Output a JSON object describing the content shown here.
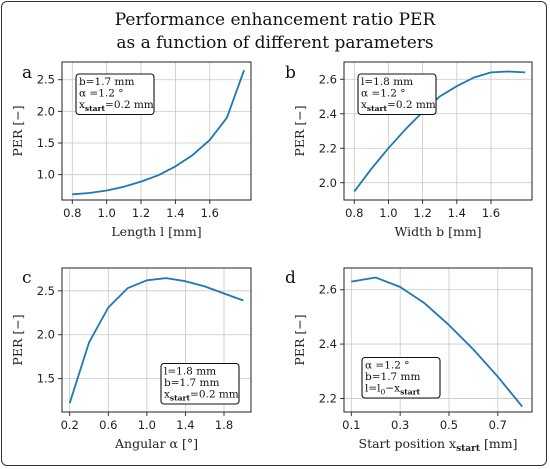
{
  "figure": {
    "title_line1": "Performance enhancement ratio PER",
    "title_line2": "as a function of different parameters",
    "line_color": "#1f77b4",
    "grid_color": "#c8c8c8"
  },
  "chart_data": [
    {
      "panel": "a",
      "type": "line",
      "xlabel": "Length l [mm]",
      "ylabel": "PER  [−]",
      "xlim": [
        0.74,
        1.84
      ],
      "ylim": [
        0.6,
        2.78
      ],
      "xticks": [
        "0.8",
        "1.0",
        "1.2",
        "1.4",
        "1.6"
      ],
      "yticks": [
        "1.0",
        "1.5",
        "2.0",
        "2.5"
      ],
      "grid": true,
      "annotation": [
        "b=1.7 mm",
        "α =1.2 °",
        "x_start=0.2 mm"
      ],
      "annotation_position": "top-left",
      "series": [
        {
          "x": [
            0.8,
            0.9,
            1.0,
            1.1,
            1.2,
            1.3,
            1.4,
            1.5,
            1.6,
            1.7,
            1.8
          ],
          "y": [
            0.69,
            0.71,
            0.75,
            0.81,
            0.89,
            0.99,
            1.13,
            1.31,
            1.55,
            1.9,
            2.65
          ]
        }
      ]
    },
    {
      "panel": "b",
      "type": "line",
      "xlabel": "Width b [mm]",
      "ylabel": "PER  [−]",
      "xlim": [
        0.74,
        1.84
      ],
      "ylim": [
        1.9,
        2.7
      ],
      "xticks": [
        "0.8",
        "1.0",
        "1.2",
        "1.4",
        "1.6"
      ],
      "yticks": [
        "2.0",
        "2.2",
        "2.4",
        "2.6"
      ],
      "grid": true,
      "annotation": [
        "l=1.8 mm",
        "α =1.2 °",
        "x_start=0.2 mm"
      ],
      "annotation_position": "top-left",
      "series": [
        {
          "x": [
            0.8,
            0.9,
            1.0,
            1.1,
            1.2,
            1.3,
            1.4,
            1.5,
            1.6,
            1.7,
            1.8
          ],
          "y": [
            1.95,
            2.08,
            2.2,
            2.31,
            2.41,
            2.5,
            2.56,
            2.61,
            2.64,
            2.645,
            2.64
          ]
        }
      ]
    },
    {
      "panel": "c",
      "type": "line",
      "xlabel": "Angular  α  [°]",
      "ylabel": "PER  [−]",
      "xlim": [
        0.12,
        2.08
      ],
      "ylim": [
        1.12,
        2.76
      ],
      "xticks": [
        "0.2",
        "0.6",
        "1.0",
        "1.4",
        "1.8"
      ],
      "yticks": [
        "1.5",
        "2.0",
        "2.5"
      ],
      "grid": true,
      "annotation": [
        "l=1.8 mm",
        "b=1.7 mm",
        "x_start=0.2 mm"
      ],
      "annotation_position": "bottom-right",
      "series": [
        {
          "x": [
            0.2,
            0.4,
            0.6,
            0.8,
            1.0,
            1.2,
            1.4,
            1.6,
            1.8,
            2.0
          ],
          "y": [
            1.22,
            1.91,
            2.31,
            2.53,
            2.62,
            2.645,
            2.61,
            2.55,
            2.47,
            2.39
          ]
        }
      ]
    },
    {
      "panel": "d",
      "type": "line",
      "xlabel": "Start position x_start [mm]",
      "ylabel": "PER  [−]",
      "xlim": [
        0.07,
        0.84
      ],
      "ylim": [
        2.15,
        2.68
      ],
      "xticks": [
        "0.1",
        "0.3",
        "0.5",
        "0.7"
      ],
      "yticks": [
        "2.2",
        "2.4",
        "2.6"
      ],
      "grid": true,
      "annotation": [
        "α =1.2 °",
        "b=1.7 mm",
        "l=l_0−x_start"
      ],
      "annotation_position": "bottom-left",
      "series": [
        {
          "x": [
            0.1,
            0.2,
            0.3,
            0.4,
            0.5,
            0.6,
            0.7,
            0.8
          ],
          "y": [
            2.63,
            2.645,
            2.61,
            2.55,
            2.47,
            2.38,
            2.28,
            2.17
          ]
        }
      ]
    }
  ]
}
